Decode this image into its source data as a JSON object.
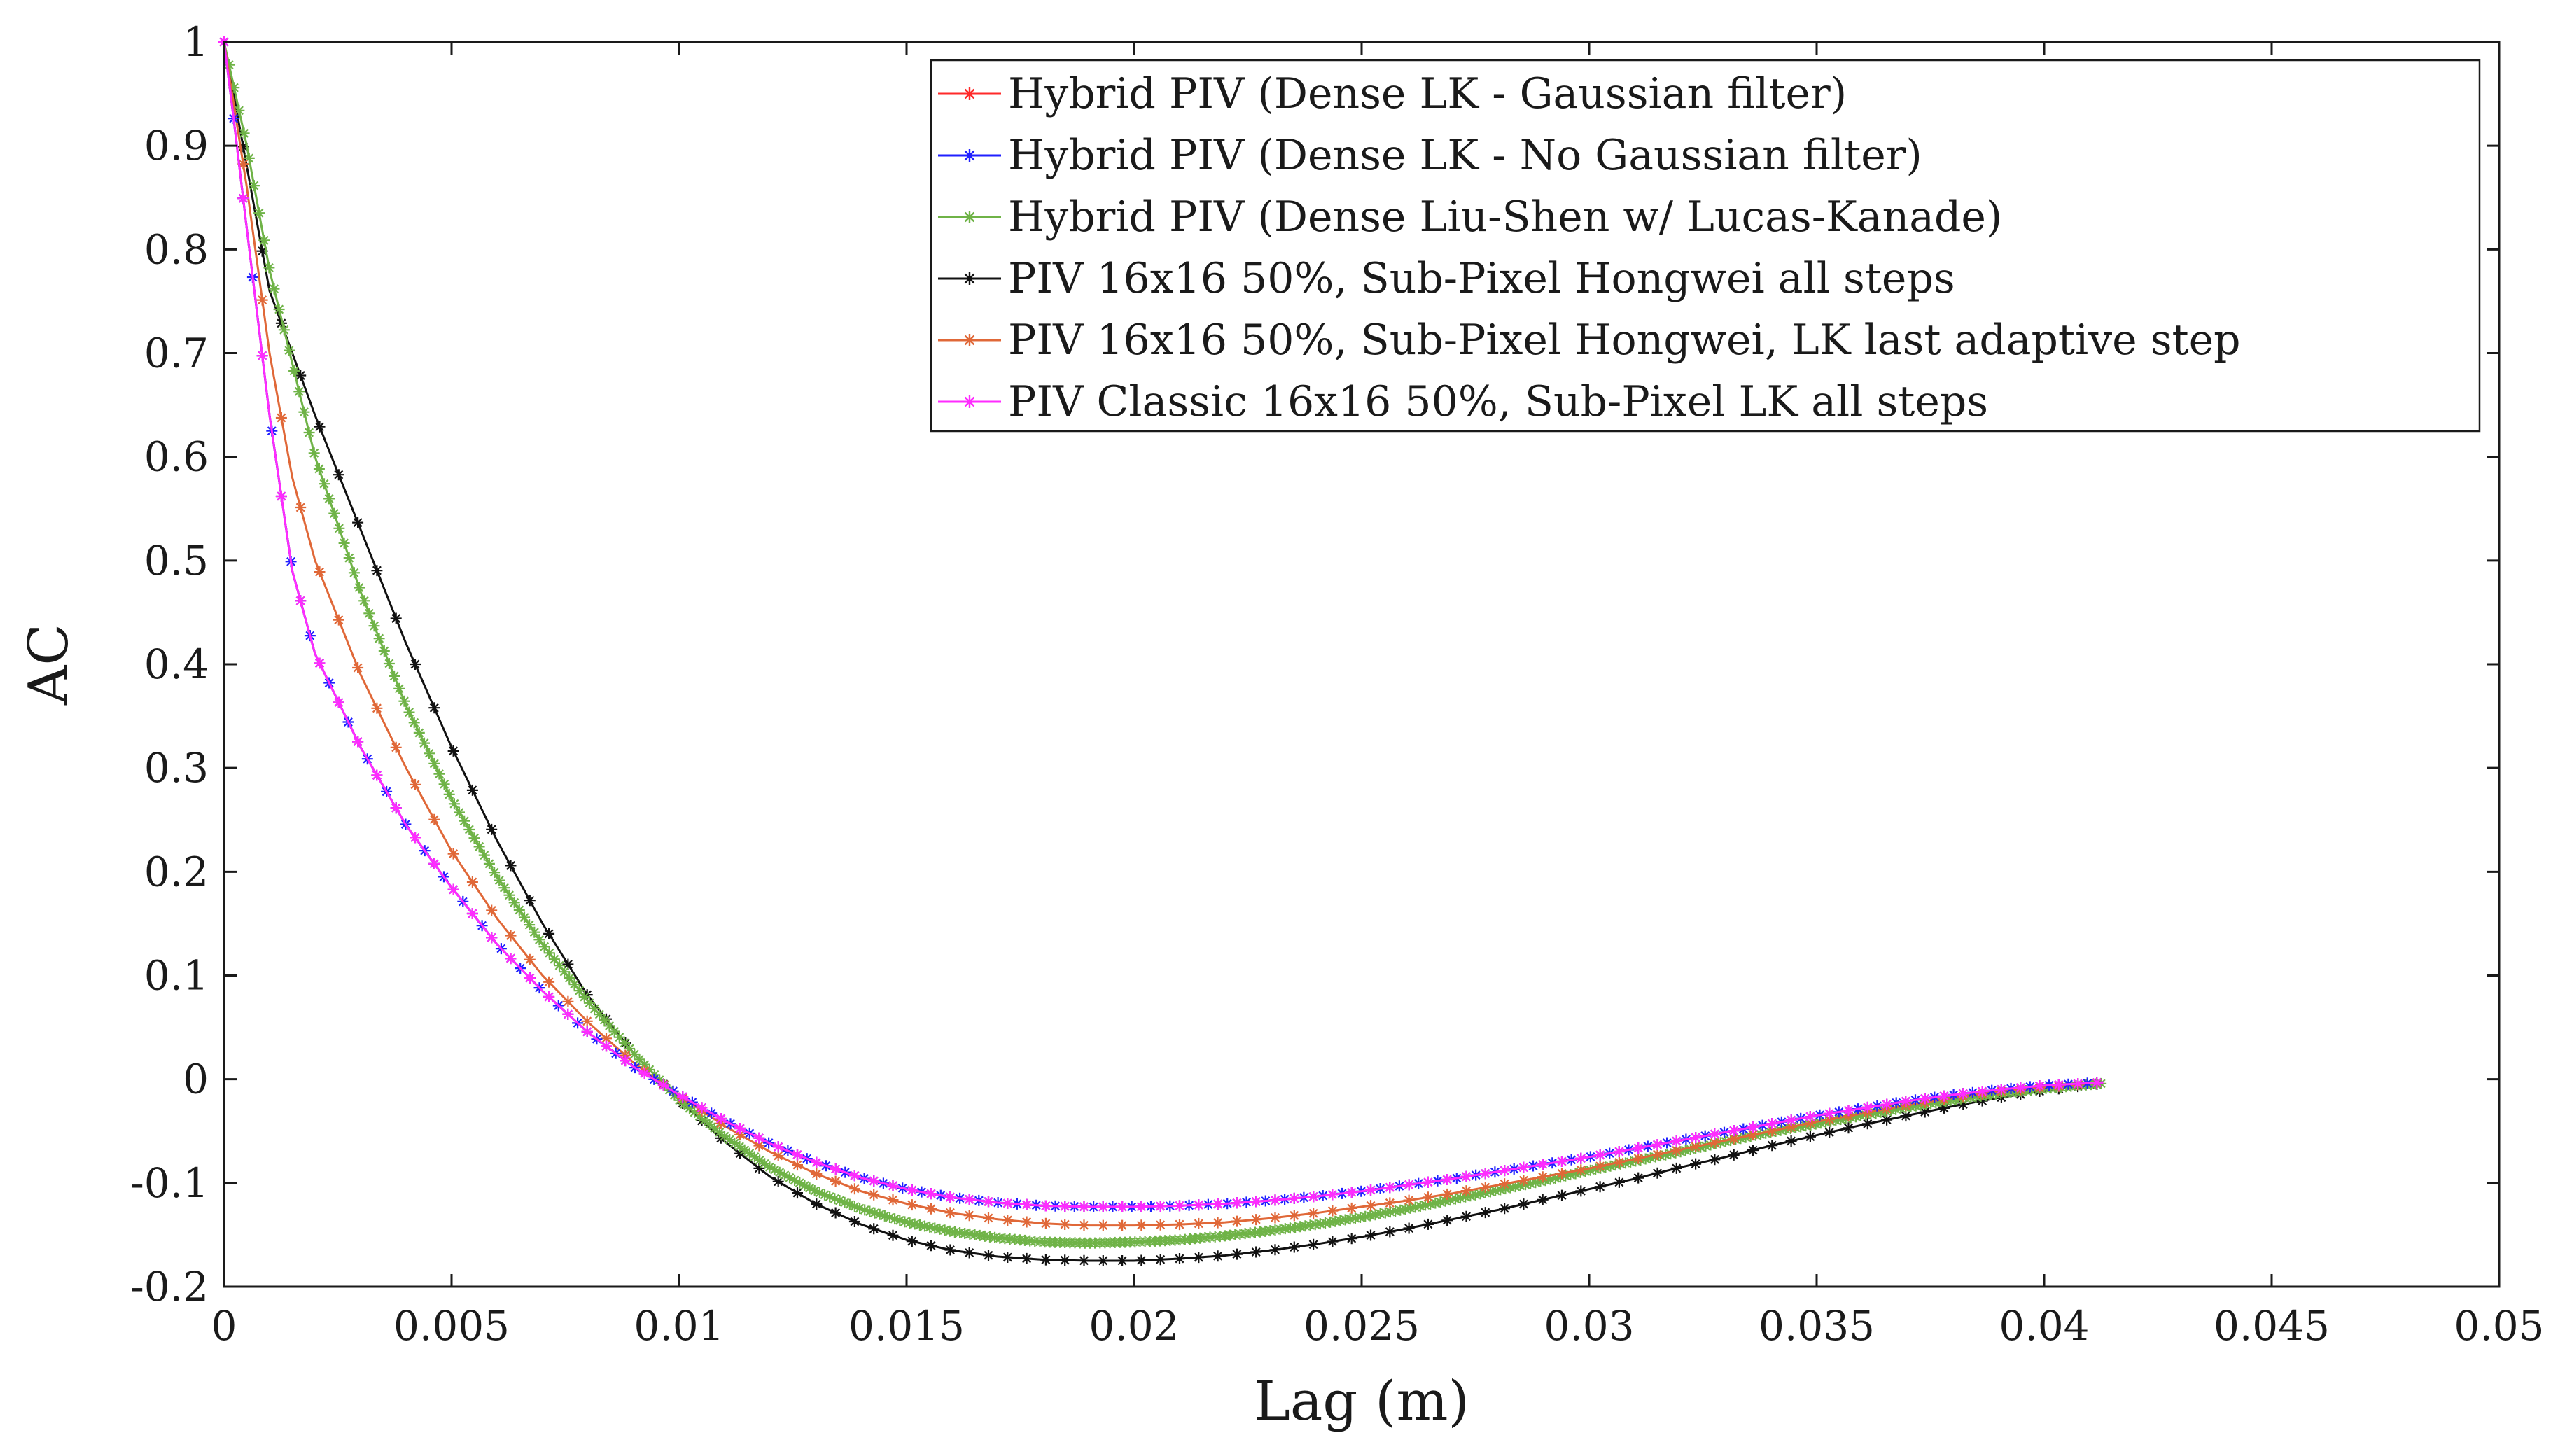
{
  "chart_data": {
    "type": "line",
    "title": "",
    "xlabel": "Lag (m)",
    "ylabel": "AC",
    "xlim": [
      0,
      0.05
    ],
    "ylim": [
      -0.2,
      1
    ],
    "x_ticks": [
      0,
      0.005,
      0.01,
      0.015,
      0.02,
      0.025,
      0.03,
      0.035,
      0.04,
      0.045,
      0.05
    ],
    "x_tick_labels": [
      "0",
      "0.005",
      "0.01",
      "0.015",
      "0.02",
      "0.025",
      "0.03",
      "0.035",
      "0.04",
      "0.045",
      "0.05"
    ],
    "y_ticks": [
      -0.2,
      -0.1,
      0,
      0.1,
      0.2,
      0.3,
      0.4,
      0.5,
      0.6,
      0.7,
      0.8,
      0.9,
      1
    ],
    "y_tick_labels": [
      "-0.2",
      "-0.1",
      "0",
      "0.1",
      "0.2",
      "0.3",
      "0.4",
      "0.5",
      "0.6",
      "0.7",
      "0.8",
      "0.9",
      "1"
    ],
    "grid": false,
    "legend_position": "top-right",
    "marker": "asterisk",
    "series": [
      {
        "name": "Hybrid PIV (Dense LK - Gaussian filter)",
        "color": "#ff2a2a",
        "points": [
          [
            0,
            1
          ],
          [
            0.0002,
            0.93
          ],
          [
            0.0005,
            0.82
          ],
          [
            0.001,
            0.64
          ],
          [
            0.0015,
            0.49
          ],
          [
            0.002,
            0.41
          ],
          [
            0.003,
            0.32
          ],
          [
            0.004,
            0.245
          ],
          [
            0.005,
            0.185
          ],
          [
            0.006,
            0.13
          ],
          [
            0.007,
            0.085
          ],
          [
            0.008,
            0.045
          ],
          [
            0.009,
            0.012
          ],
          [
            0.01,
            -0.015
          ],
          [
            0.011,
            -0.04
          ],
          [
            0.012,
            -0.062
          ],
          [
            0.013,
            -0.08
          ],
          [
            0.014,
            -0.095
          ],
          [
            0.015,
            -0.106
          ],
          [
            0.016,
            -0.114
          ],
          [
            0.017,
            -0.119
          ],
          [
            0.018,
            -0.122
          ],
          [
            0.019,
            -0.123
          ],
          [
            0.02,
            -0.123
          ],
          [
            0.021,
            -0.122
          ],
          [
            0.022,
            -0.12
          ],
          [
            0.023,
            -0.117
          ],
          [
            0.024,
            -0.113
          ],
          [
            0.025,
            -0.108
          ],
          [
            0.026,
            -0.102
          ],
          [
            0.027,
            -0.096
          ],
          [
            0.028,
            -0.089
          ],
          [
            0.029,
            -0.082
          ],
          [
            0.03,
            -0.075
          ],
          [
            0.031,
            -0.067
          ],
          [
            0.032,
            -0.059
          ],
          [
            0.033,
            -0.051
          ],
          [
            0.034,
            -0.043
          ],
          [
            0.035,
            -0.035
          ],
          [
            0.036,
            -0.028
          ],
          [
            0.037,
            -0.021
          ],
          [
            0.038,
            -0.015
          ],
          [
            0.039,
            -0.01
          ],
          [
            0.04,
            -0.006
          ],
          [
            0.0413,
            -0.003
          ]
        ],
        "marker_step": 0.00042
      },
      {
        "name": "Hybrid PIV (Dense LK - No Gaussian filter)",
        "color": "#2020ff",
        "points": [
          [
            0,
            1
          ],
          [
            0.0002,
            0.93
          ],
          [
            0.0005,
            0.82
          ],
          [
            0.001,
            0.64
          ],
          [
            0.0015,
            0.49
          ],
          [
            0.002,
            0.41
          ],
          [
            0.003,
            0.32
          ],
          [
            0.004,
            0.245
          ],
          [
            0.005,
            0.185
          ],
          [
            0.006,
            0.13
          ],
          [
            0.007,
            0.085
          ],
          [
            0.008,
            0.045
          ],
          [
            0.009,
            0.012
          ],
          [
            0.01,
            -0.015
          ],
          [
            0.011,
            -0.04
          ],
          [
            0.012,
            -0.062
          ],
          [
            0.013,
            -0.08
          ],
          [
            0.014,
            -0.095
          ],
          [
            0.015,
            -0.106
          ],
          [
            0.016,
            -0.114
          ],
          [
            0.017,
            -0.119
          ],
          [
            0.018,
            -0.122
          ],
          [
            0.019,
            -0.123
          ],
          [
            0.02,
            -0.123
          ],
          [
            0.021,
            -0.122
          ],
          [
            0.022,
            -0.12
          ],
          [
            0.023,
            -0.117
          ],
          [
            0.024,
            -0.113
          ],
          [
            0.025,
            -0.108
          ],
          [
            0.026,
            -0.102
          ],
          [
            0.027,
            -0.096
          ],
          [
            0.028,
            -0.089
          ],
          [
            0.029,
            -0.082
          ],
          [
            0.03,
            -0.075
          ],
          [
            0.031,
            -0.067
          ],
          [
            0.032,
            -0.059
          ],
          [
            0.033,
            -0.051
          ],
          [
            0.034,
            -0.043
          ],
          [
            0.035,
            -0.035
          ],
          [
            0.036,
            -0.028
          ],
          [
            0.037,
            -0.021
          ],
          [
            0.038,
            -0.015
          ],
          [
            0.039,
            -0.01
          ],
          [
            0.04,
            -0.006
          ],
          [
            0.0413,
            -0.003
          ]
        ],
        "marker_step": 0.00021
      },
      {
        "name": "Hybrid PIV (Dense Liu-Shen w/ Lucas-Kanade)",
        "color": "#6fb347",
        "points": [
          [
            0,
            1
          ],
          [
            0.0005,
            0.9
          ],
          [
            0.001,
            0.78
          ],
          [
            0.002,
            0.6
          ],
          [
            0.003,
            0.47
          ],
          [
            0.004,
            0.36
          ],
          [
            0.005,
            0.27
          ],
          [
            0.006,
            0.195
          ],
          [
            0.007,
            0.13
          ],
          [
            0.008,
            0.075
          ],
          [
            0.009,
            0.025
          ],
          [
            0.01,
            -0.02
          ],
          [
            0.011,
            -0.055
          ],
          [
            0.012,
            -0.085
          ],
          [
            0.013,
            -0.108
          ],
          [
            0.014,
            -0.125
          ],
          [
            0.015,
            -0.138
          ],
          [
            0.016,
            -0.147
          ],
          [
            0.017,
            -0.153
          ],
          [
            0.018,
            -0.157
          ],
          [
            0.019,
            -0.158
          ],
          [
            0.02,
            -0.157
          ],
          [
            0.021,
            -0.155
          ],
          [
            0.022,
            -0.151
          ],
          [
            0.023,
            -0.146
          ],
          [
            0.024,
            -0.14
          ],
          [
            0.025,
            -0.133
          ],
          [
            0.026,
            -0.125
          ],
          [
            0.027,
            -0.116
          ],
          [
            0.028,
            -0.107
          ],
          [
            0.029,
            -0.098
          ],
          [
            0.03,
            -0.088
          ],
          [
            0.031,
            -0.079
          ],
          [
            0.032,
            -0.07
          ],
          [
            0.033,
            -0.06
          ],
          [
            0.034,
            -0.051
          ],
          [
            0.035,
            -0.043
          ],
          [
            0.036,
            -0.035
          ],
          [
            0.037,
            -0.027
          ],
          [
            0.038,
            -0.02
          ],
          [
            0.039,
            -0.014
          ],
          [
            0.04,
            -0.009
          ],
          [
            0.0413,
            -0.004
          ]
        ],
        "marker_step": 0.00011
      },
      {
        "name": "PIV 16x16 50%, Sub-Pixel Hongwei all steps",
        "color": "#111111",
        "points": [
          [
            0,
            1
          ],
          [
            0.0005,
            0.88
          ],
          [
            0.001,
            0.76
          ],
          [
            0.002,
            0.64
          ],
          [
            0.003,
            0.53
          ],
          [
            0.004,
            0.42
          ],
          [
            0.005,
            0.32
          ],
          [
            0.006,
            0.23
          ],
          [
            0.007,
            0.15
          ],
          [
            0.008,
            0.08
          ],
          [
            0.009,
            0.025
          ],
          [
            0.01,
            -0.02
          ],
          [
            0.011,
            -0.06
          ],
          [
            0.012,
            -0.094
          ],
          [
            0.013,
            -0.12
          ],
          [
            0.014,
            -0.14
          ],
          [
            0.015,
            -0.155
          ],
          [
            0.016,
            -0.165
          ],
          [
            0.017,
            -0.171
          ],
          [
            0.018,
            -0.174
          ],
          [
            0.019,
            -0.175
          ],
          [
            0.02,
            -0.175
          ],
          [
            0.021,
            -0.173
          ],
          [
            0.022,
            -0.17
          ],
          [
            0.023,
            -0.165
          ],
          [
            0.024,
            -0.159
          ],
          [
            0.025,
            -0.152
          ],
          [
            0.026,
            -0.144
          ],
          [
            0.027,
            -0.135
          ],
          [
            0.028,
            -0.126
          ],
          [
            0.029,
            -0.116
          ],
          [
            0.03,
            -0.106
          ],
          [
            0.031,
            -0.096
          ],
          [
            0.032,
            -0.085
          ],
          [
            0.033,
            -0.075
          ],
          [
            0.034,
            -0.064
          ],
          [
            0.035,
            -0.054
          ],
          [
            0.036,
            -0.044
          ],
          [
            0.037,
            -0.035
          ],
          [
            0.038,
            -0.026
          ],
          [
            0.039,
            -0.018
          ],
          [
            0.04,
            -0.011
          ],
          [
            0.0413,
            -0.004
          ]
        ],
        "marker_step": 0.00042
      },
      {
        "name": "PIV 16x16 50%, Sub-Pixel Hongwei, LK last adaptive step",
        "color": "#e06838",
        "points": [
          [
            0,
            1
          ],
          [
            0.0005,
            0.86
          ],
          [
            0.001,
            0.7
          ],
          [
            0.0015,
            0.58
          ],
          [
            0.002,
            0.5
          ],
          [
            0.003,
            0.39
          ],
          [
            0.004,
            0.3
          ],
          [
            0.005,
            0.22
          ],
          [
            0.006,
            0.155
          ],
          [
            0.007,
            0.1
          ],
          [
            0.008,
            0.055
          ],
          [
            0.009,
            0.016
          ],
          [
            0.01,
            -0.016
          ],
          [
            0.011,
            -0.045
          ],
          [
            0.012,
            -0.07
          ],
          [
            0.013,
            -0.091
          ],
          [
            0.014,
            -0.108
          ],
          [
            0.015,
            -0.12
          ],
          [
            0.016,
            -0.129
          ],
          [
            0.017,
            -0.135
          ],
          [
            0.018,
            -0.139
          ],
          [
            0.019,
            -0.141
          ],
          [
            0.02,
            -0.141
          ],
          [
            0.021,
            -0.14
          ],
          [
            0.022,
            -0.138
          ],
          [
            0.023,
            -0.134
          ],
          [
            0.024,
            -0.129
          ],
          [
            0.025,
            -0.123
          ],
          [
            0.026,
            -0.117
          ],
          [
            0.027,
            -0.11
          ],
          [
            0.028,
            -0.102
          ],
          [
            0.029,
            -0.094
          ],
          [
            0.03,
            -0.086
          ],
          [
            0.031,
            -0.077
          ],
          [
            0.032,
            -0.068
          ],
          [
            0.033,
            -0.059
          ],
          [
            0.034,
            -0.05
          ],
          [
            0.035,
            -0.041
          ],
          [
            0.036,
            -0.033
          ],
          [
            0.037,
            -0.025
          ],
          [
            0.038,
            -0.018
          ],
          [
            0.039,
            -0.012
          ],
          [
            0.04,
            -0.008
          ],
          [
            0.0413,
            -0.003
          ]
        ],
        "marker_step": 0.00042
      },
      {
        "name": "PIV Classic 16x16 50%, Sub-Pixel LK all steps",
        "color": "#ff2bff",
        "points": [
          [
            0,
            1
          ],
          [
            0.0002,
            0.93
          ],
          [
            0.0005,
            0.82
          ],
          [
            0.001,
            0.64
          ],
          [
            0.0015,
            0.49
          ],
          [
            0.002,
            0.41
          ],
          [
            0.003,
            0.32
          ],
          [
            0.004,
            0.245
          ],
          [
            0.005,
            0.185
          ],
          [
            0.006,
            0.13
          ],
          [
            0.007,
            0.085
          ],
          [
            0.008,
            0.045
          ],
          [
            0.009,
            0.012
          ],
          [
            0.01,
            -0.015
          ],
          [
            0.011,
            -0.04
          ],
          [
            0.012,
            -0.062
          ],
          [
            0.013,
            -0.08
          ],
          [
            0.014,
            -0.095
          ],
          [
            0.015,
            -0.106
          ],
          [
            0.016,
            -0.114
          ],
          [
            0.017,
            -0.119
          ],
          [
            0.018,
            -0.122
          ],
          [
            0.019,
            -0.123
          ],
          [
            0.02,
            -0.123
          ],
          [
            0.021,
            -0.122
          ],
          [
            0.022,
            -0.12
          ],
          [
            0.023,
            -0.117
          ],
          [
            0.024,
            -0.113
          ],
          [
            0.025,
            -0.108
          ],
          [
            0.026,
            -0.102
          ],
          [
            0.027,
            -0.096
          ],
          [
            0.028,
            -0.089
          ],
          [
            0.029,
            -0.082
          ],
          [
            0.03,
            -0.075
          ],
          [
            0.031,
            -0.067
          ],
          [
            0.032,
            -0.059
          ],
          [
            0.033,
            -0.051
          ],
          [
            0.034,
            -0.043
          ],
          [
            0.035,
            -0.035
          ],
          [
            0.036,
            -0.028
          ],
          [
            0.037,
            -0.021
          ],
          [
            0.038,
            -0.015
          ],
          [
            0.039,
            -0.01
          ],
          [
            0.04,
            -0.006
          ],
          [
            0.0413,
            -0.003
          ]
        ],
        "marker_step": 0.00042
      }
    ]
  }
}
